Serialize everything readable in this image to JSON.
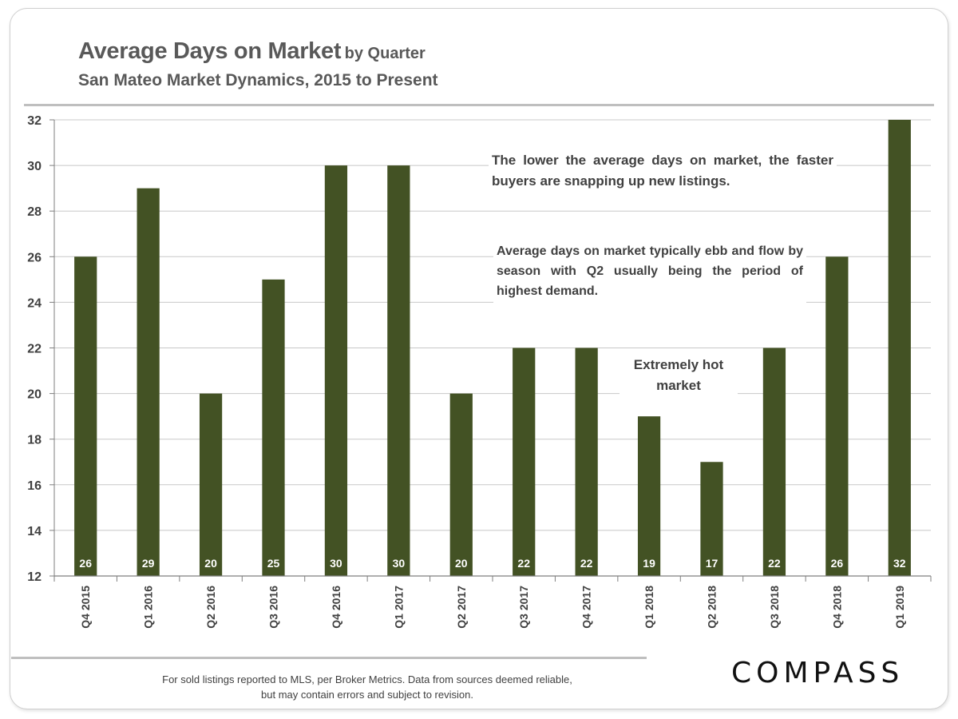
{
  "header": {
    "title": "Average Days on Market",
    "title_suffix": "by Quarter",
    "subtitle": "San Mateo Market Dynamics, 2015 to Present"
  },
  "annotations": {
    "note1": "The lower the average days on market, the faster buyers are snapping up new listings.",
    "note2": "Average days on market typically ebb and flow by season with Q2 usually being the period of highest demand.",
    "note3": "Extremely hot market"
  },
  "footer": {
    "source_line1": "For sold listings reported to MLS, per Broker Metrics. Data from sources deemed reliable,",
    "source_line2": "but may contain errors and subject to revision.",
    "logo_text": "COMPASS"
  },
  "chart_data": {
    "type": "bar",
    "title": "Average Days on Market by Quarter",
    "subtitle": "San Mateo Market Dynamics, 2015 to Present",
    "xlabel": "",
    "ylabel": "",
    "categories": [
      "Q4 2015",
      "Q1 2016",
      "Q2 2016",
      "Q3 2016",
      "Q4 2016",
      "Q1 2017",
      "Q2 2017",
      "Q3 2017",
      "Q4 2017",
      "Q1 2018",
      "Q2 2018",
      "Q3 2018",
      "Q4 2018",
      "Q1 2019"
    ],
    "values": [
      26,
      29,
      20,
      25,
      30,
      30,
      20,
      22,
      22,
      19,
      17,
      22,
      26,
      32
    ],
    "ylim": [
      12,
      32
    ],
    "yticks": [
      12,
      14,
      16,
      18,
      20,
      22,
      24,
      26,
      28,
      30,
      32
    ],
    "grid": true,
    "data_labels": true,
    "legend": "none",
    "bar_color": "#435224",
    "label_color": "#ffffff"
  }
}
